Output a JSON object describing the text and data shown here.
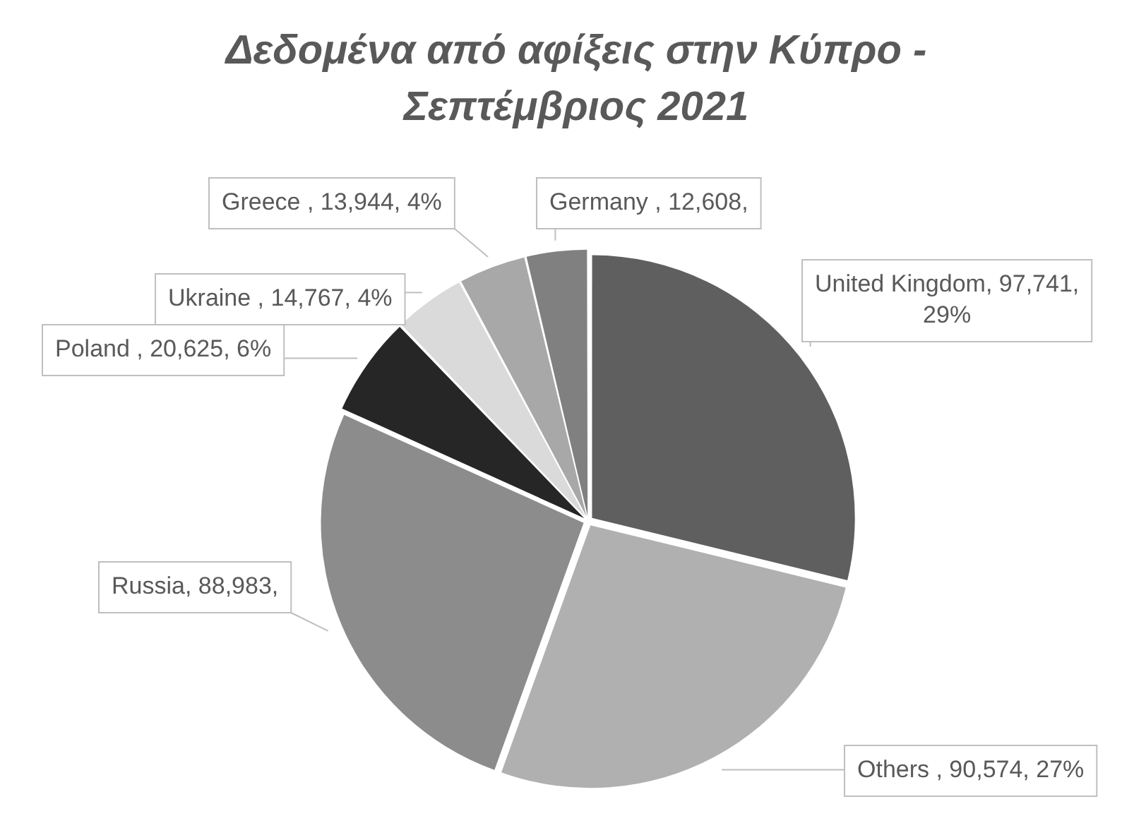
{
  "chart_data": {
    "type": "pie",
    "title": "Δεδομένα από αφίξεις στην Κύπρο - Σεπτέμβριος 2021",
    "categories": [
      "United Kingdom",
      "Others ",
      "Russia",
      "Poland ",
      "Ukraine ",
      "Greece ",
      "Germany "
    ],
    "values": [
      97741,
      90574,
      88983,
      20625,
      14767,
      13944,
      12608
    ],
    "colors": [
      "#5f5f5f",
      "#b0b0b0",
      "#8c8c8c",
      "#262626",
      "#dadada",
      "#a8a8a8",
      "#808080"
    ],
    "value_labels": [
      "97,741, 29%",
      "90,574, 27%",
      "88,983,",
      "20,625, 6%",
      "14,767, 4%",
      "13,944, 4%",
      "12,608,"
    ],
    "legend": false
  }
}
